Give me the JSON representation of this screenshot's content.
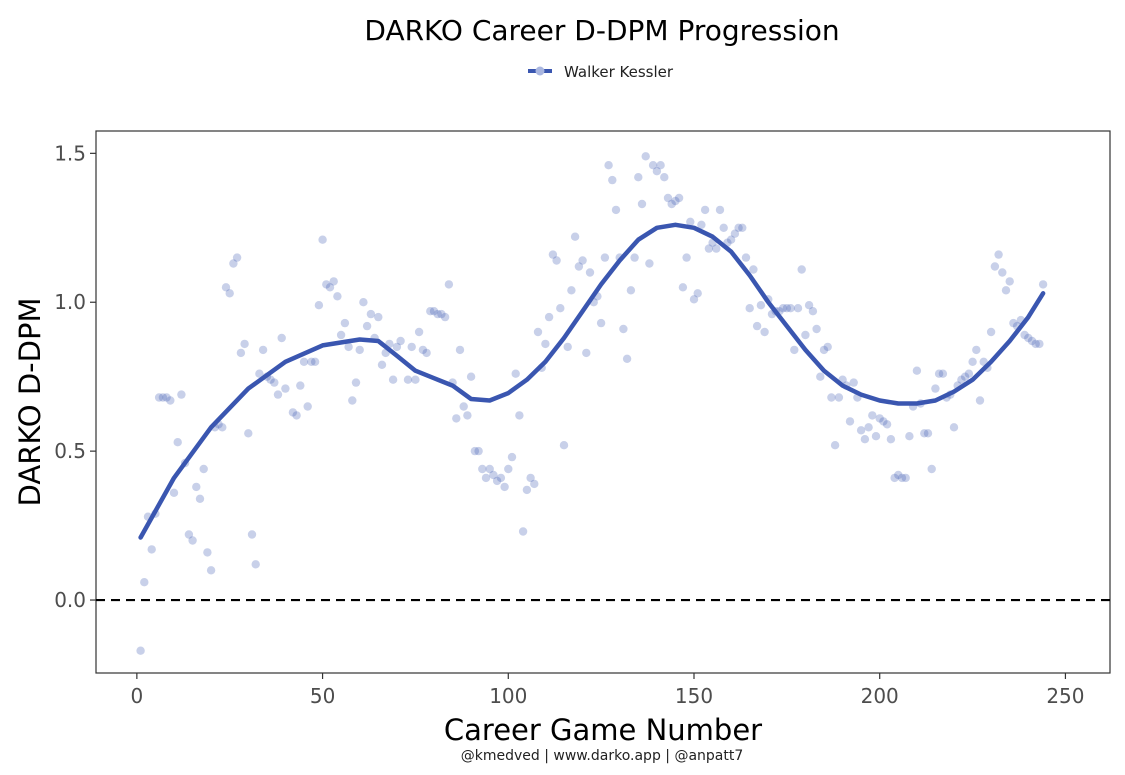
{
  "chart_data": {
    "type": "scatter",
    "title": "DARKO Career D-DPM Progression",
    "xlabel": "Career Game Number",
    "ylabel": "DARKO D-DPM",
    "caption": "@kmedved | www.darko.app | @anpatt7",
    "xlim": [
      -11,
      262
    ],
    "ylim": [
      -0.245,
      1.575
    ],
    "xticks": [
      0,
      50,
      100,
      150,
      200,
      250
    ],
    "yticks": [
      0.0,
      0.5,
      1.0,
      1.5
    ],
    "xtick_labels": [
      "0",
      "50",
      "100",
      "150",
      "200",
      "250"
    ],
    "ytick_labels": [
      "0.0",
      "0.5",
      "1.0",
      "1.5"
    ],
    "reference_line": {
      "y": 0.0,
      "style": "dashed"
    },
    "legend": {
      "position": "top"
    },
    "grid": false,
    "series": [
      {
        "name": "Walker Kessler",
        "color": "#3a56b0",
        "points": [
          [
            1,
            -0.17
          ],
          [
            2,
            0.06
          ],
          [
            3,
            0.28
          ],
          [
            4,
            0.17
          ],
          [
            5,
            0.29
          ],
          [
            6,
            0.68
          ],
          [
            7,
            0.68
          ],
          [
            8,
            0.68
          ],
          [
            9,
            0.67
          ],
          [
            10,
            0.36
          ],
          [
            11,
            0.53
          ],
          [
            12,
            0.69
          ],
          [
            13,
            0.46
          ],
          [
            14,
            0.22
          ],
          [
            15,
            0.2
          ],
          [
            16,
            0.38
          ],
          [
            17,
            0.34
          ],
          [
            18,
            0.44
          ],
          [
            19,
            0.16
          ],
          [
            20,
            0.1
          ],
          [
            21,
            0.58
          ],
          [
            22,
            0.59
          ],
          [
            23,
            0.58
          ],
          [
            24,
            1.05
          ],
          [
            25,
            1.03
          ],
          [
            26,
            1.13
          ],
          [
            27,
            1.15
          ],
          [
            28,
            0.83
          ],
          [
            29,
            0.86
          ],
          [
            30,
            0.56
          ],
          [
            31,
            0.22
          ],
          [
            32,
            0.12
          ],
          [
            33,
            0.76
          ],
          [
            34,
            0.84
          ],
          [
            35,
            0.75
          ],
          [
            36,
            0.74
          ],
          [
            37,
            0.73
          ],
          [
            38,
            0.69
          ],
          [
            39,
            0.88
          ],
          [
            40,
            0.71
          ],
          [
            42,
            0.63
          ],
          [
            43,
            0.62
          ],
          [
            44,
            0.72
          ],
          [
            45,
            0.8
          ],
          [
            46,
            0.65
          ],
          [
            47,
            0.8
          ],
          [
            48,
            0.8
          ],
          [
            49,
            0.99
          ],
          [
            50,
            1.21
          ],
          [
            51,
            1.06
          ],
          [
            52,
            1.05
          ],
          [
            53,
            1.07
          ],
          [
            54,
            1.02
          ],
          [
            55,
            0.89
          ],
          [
            56,
            0.93
          ],
          [
            57,
            0.85
          ],
          [
            58,
            0.67
          ],
          [
            59,
            0.73
          ],
          [
            60,
            0.84
          ],
          [
            61,
            1.0
          ],
          [
            62,
            0.92
          ],
          [
            63,
            0.96
          ],
          [
            64,
            0.88
          ],
          [
            65,
            0.95
          ],
          [
            66,
            0.79
          ],
          [
            67,
            0.83
          ],
          [
            68,
            0.86
          ],
          [
            69,
            0.74
          ],
          [
            70,
            0.85
          ],
          [
            71,
            0.87
          ],
          [
            73,
            0.74
          ],
          [
            74,
            0.85
          ],
          [
            75,
            0.74
          ],
          [
            76,
            0.9
          ],
          [
            77,
            0.84
          ],
          [
            78,
            0.83
          ],
          [
            79,
            0.97
          ],
          [
            80,
            0.97
          ],
          [
            81,
            0.96
          ],
          [
            82,
            0.96
          ],
          [
            83,
            0.95
          ],
          [
            84,
            1.06
          ],
          [
            85,
            0.73
          ],
          [
            86,
            0.61
          ],
          [
            87,
            0.84
          ],
          [
            88,
            0.65
          ],
          [
            89,
            0.62
          ],
          [
            90,
            0.75
          ],
          [
            91,
            0.5
          ],
          [
            92,
            0.5
          ],
          [
            93,
            0.44
          ],
          [
            94,
            0.41
          ],
          [
            95,
            0.44
          ],
          [
            96,
            0.42
          ],
          [
            97,
            0.4
          ],
          [
            98,
            0.41
          ],
          [
            99,
            0.38
          ],
          [
            100,
            0.44
          ],
          [
            101,
            0.48
          ],
          [
            102,
            0.76
          ],
          [
            103,
            0.62
          ],
          [
            104,
            0.23
          ],
          [
            105,
            0.37
          ],
          [
            106,
            0.41
          ],
          [
            107,
            0.39
          ],
          [
            108,
            0.9
          ],
          [
            109,
            0.78
          ],
          [
            110,
            0.86
          ],
          [
            111,
            0.95
          ],
          [
            112,
            1.16
          ],
          [
            113,
            1.14
          ],
          [
            114,
            0.98
          ],
          [
            115,
            0.52
          ],
          [
            116,
            0.85
          ],
          [
            117,
            1.04
          ],
          [
            118,
            1.22
          ],
          [
            119,
            1.12
          ],
          [
            120,
            1.14
          ],
          [
            121,
            0.83
          ],
          [
            122,
            1.1
          ],
          [
            123,
            1.0
          ],
          [
            124,
            1.02
          ],
          [
            125,
            0.93
          ],
          [
            126,
            1.15
          ],
          [
            127,
            1.46
          ],
          [
            128,
            1.41
          ],
          [
            129,
            1.31
          ],
          [
            130,
            1.15
          ],
          [
            131,
            0.91
          ],
          [
            132,
            0.81
          ],
          [
            133,
            1.04
          ],
          [
            134,
            1.15
          ],
          [
            135,
            1.42
          ],
          [
            136,
            1.33
          ],
          [
            137,
            1.49
          ],
          [
            138,
            1.13
          ],
          [
            139,
            1.46
          ],
          [
            140,
            1.44
          ],
          [
            141,
            1.46
          ],
          [
            142,
            1.42
          ],
          [
            143,
            1.35
          ],
          [
            144,
            1.33
          ],
          [
            145,
            1.34
          ],
          [
            146,
            1.35
          ],
          [
            147,
            1.05
          ],
          [
            148,
            1.15
          ],
          [
            149,
            1.27
          ],
          [
            150,
            1.01
          ],
          [
            151,
            1.03
          ],
          [
            152,
            1.26
          ],
          [
            153,
            1.31
          ],
          [
            154,
            1.18
          ],
          [
            155,
            1.2
          ],
          [
            156,
            1.18
          ],
          [
            157,
            1.31
          ],
          [
            158,
            1.25
          ],
          [
            159,
            1.2
          ],
          [
            160,
            1.21
          ],
          [
            161,
            1.23
          ],
          [
            162,
            1.25
          ],
          [
            163,
            1.25
          ],
          [
            164,
            1.15
          ],
          [
            165,
            0.98
          ],
          [
            166,
            1.11
          ],
          [
            167,
            0.92
          ],
          [
            168,
            0.99
          ],
          [
            169,
            0.9
          ],
          [
            170,
            1.01
          ],
          [
            171,
            0.96
          ],
          [
            172,
            0.97
          ],
          [
            173,
            0.97
          ],
          [
            174,
            0.98
          ],
          [
            175,
            0.98
          ],
          [
            176,
            0.98
          ],
          [
            177,
            0.84
          ],
          [
            178,
            0.98
          ],
          [
            179,
            1.11
          ],
          [
            180,
            0.89
          ],
          [
            181,
            0.99
          ],
          [
            182,
            0.97
          ],
          [
            183,
            0.91
          ],
          [
            184,
            0.75
          ],
          [
            185,
            0.84
          ],
          [
            186,
            0.85
          ],
          [
            187,
            0.68
          ],
          [
            188,
            0.52
          ],
          [
            189,
            0.68
          ],
          [
            190,
            0.74
          ],
          [
            191,
            0.72
          ],
          [
            192,
            0.6
          ],
          [
            193,
            0.73
          ],
          [
            194,
            0.68
          ],
          [
            195,
            0.57
          ],
          [
            196,
            0.54
          ],
          [
            197,
            0.58
          ],
          [
            198,
            0.62
          ],
          [
            199,
            0.55
          ],
          [
            200,
            0.61
          ],
          [
            201,
            0.6
          ],
          [
            202,
            0.59
          ],
          [
            203,
            0.54
          ],
          [
            204,
            0.41
          ],
          [
            205,
            0.42
          ],
          [
            206,
            0.41
          ],
          [
            207,
            0.41
          ],
          [
            208,
            0.55
          ],
          [
            209,
            0.65
          ],
          [
            210,
            0.77
          ],
          [
            211,
            0.66
          ],
          [
            212,
            0.56
          ],
          [
            213,
            0.56
          ],
          [
            214,
            0.44
          ],
          [
            215,
            0.71
          ],
          [
            216,
            0.76
          ],
          [
            217,
            0.76
          ],
          [
            218,
            0.68
          ],
          [
            219,
            0.69
          ],
          [
            220,
            0.58
          ],
          [
            221,
            0.72
          ],
          [
            222,
            0.74
          ],
          [
            223,
            0.75
          ],
          [
            224,
            0.76
          ],
          [
            225,
            0.8
          ],
          [
            226,
            0.84
          ],
          [
            227,
            0.67
          ],
          [
            228,
            0.8
          ],
          [
            229,
            0.78
          ],
          [
            230,
            0.9
          ],
          [
            231,
            1.12
          ],
          [
            232,
            1.16
          ],
          [
            233,
            1.1
          ],
          [
            234,
            1.04
          ],
          [
            235,
            1.07
          ],
          [
            236,
            0.93
          ],
          [
            237,
            0.92
          ],
          [
            238,
            0.94
          ],
          [
            239,
            0.89
          ],
          [
            240,
            0.88
          ],
          [
            241,
            0.87
          ],
          [
            242,
            0.86
          ],
          [
            243,
            0.86
          ],
          [
            244,
            1.06
          ]
        ],
        "trend": [
          [
            1,
            0.21
          ],
          [
            10,
            0.41
          ],
          [
            20,
            0.58
          ],
          [
            30,
            0.71
          ],
          [
            40,
            0.8
          ],
          [
            50,
            0.855
          ],
          [
            60,
            0.875
          ],
          [
            65,
            0.87
          ],
          [
            70,
            0.82
          ],
          [
            75,
            0.77
          ],
          [
            80,
            0.745
          ],
          [
            85,
            0.72
          ],
          [
            90,
            0.675
          ],
          [
            95,
            0.67
          ],
          [
            100,
            0.695
          ],
          [
            105,
            0.74
          ],
          [
            110,
            0.8
          ],
          [
            115,
            0.88
          ],
          [
            120,
            0.97
          ],
          [
            125,
            1.06
          ],
          [
            130,
            1.14
          ],
          [
            135,
            1.21
          ],
          [
            140,
            1.25
          ],
          [
            145,
            1.26
          ],
          [
            150,
            1.25
          ],
          [
            155,
            1.22
          ],
          [
            160,
            1.17
          ],
          [
            165,
            1.09
          ],
          [
            170,
            1.0
          ],
          [
            175,
            0.92
          ],
          [
            180,
            0.84
          ],
          [
            185,
            0.77
          ],
          [
            190,
            0.72
          ],
          [
            195,
            0.69
          ],
          [
            200,
            0.67
          ],
          [
            205,
            0.66
          ],
          [
            210,
            0.66
          ],
          [
            215,
            0.67
          ],
          [
            220,
            0.7
          ],
          [
            225,
            0.74
          ],
          [
            230,
            0.8
          ],
          [
            235,
            0.87
          ],
          [
            240,
            0.95
          ],
          [
            244,
            1.03
          ]
        ]
      }
    ]
  }
}
